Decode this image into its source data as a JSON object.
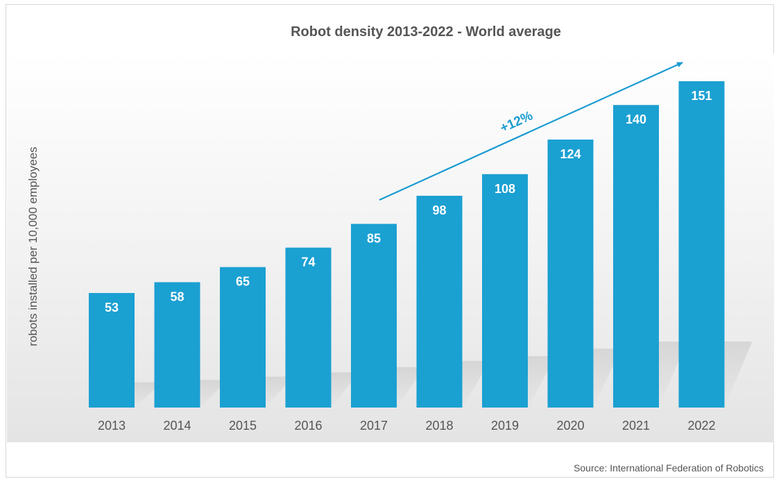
{
  "chart_data": {
    "type": "bar",
    "title": "Robot density 2013-2022 - World average",
    "ylabel": "robots installed per 10,000 employees",
    "xlabel": "",
    "categories": [
      "2013",
      "2014",
      "2015",
      "2016",
      "2017",
      "2018",
      "2019",
      "2020",
      "2021",
      "2022"
    ],
    "values": [
      53,
      58,
      65,
      74,
      85,
      98,
      108,
      124,
      140,
      151
    ],
    "ylim": [
      0,
      151
    ],
    "grid": false,
    "legend": "none",
    "annotation": "+12%",
    "source": "Source: International Federation of Robotics",
    "bar_color": "#1ba0d2",
    "annotation_color": "#1a9bd1",
    "text_color": "#555555"
  }
}
